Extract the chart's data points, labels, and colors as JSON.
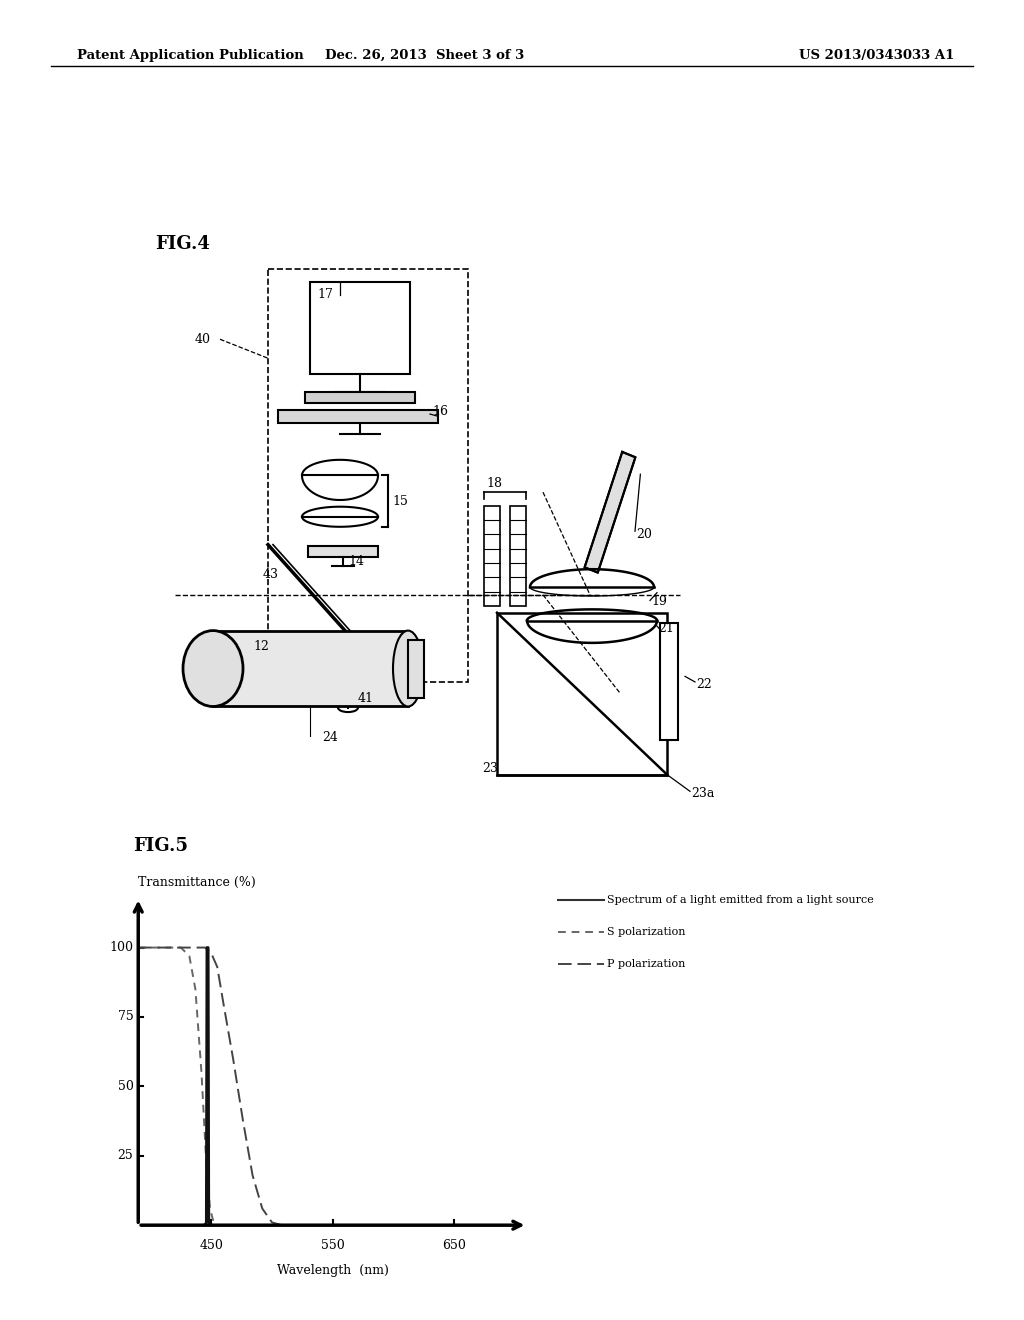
{
  "bg_color": "#ffffff",
  "header_left": "Patent Application Publication",
  "header_center": "Dec. 26, 2013  Sheet 3 of 3",
  "header_right": "US 2013/0343033 A1",
  "fig4_label": "FIG.4",
  "fig5_label": "FIG.5",
  "fig5_ylabel": "Transmittance (%)",
  "fig5_xlabel": "Wavelength  (nm)",
  "legend_line1": "Spectrum of a light emitted from a light source",
  "legend_line2": "S polarization",
  "legend_line3": "P polarization"
}
